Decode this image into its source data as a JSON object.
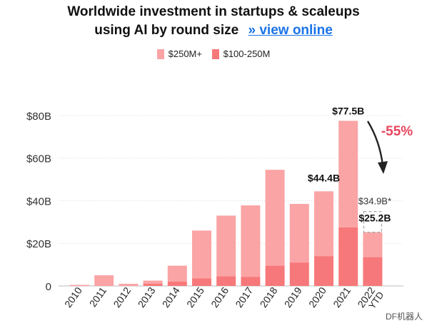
{
  "title_line1": "Worldwide investment in startups & scaleups",
  "title_line2": "using AI by round size",
  "view_online_link": "» view online",
  "footer_watermark": "DF机器人",
  "chart_data": {
    "type": "bar",
    "stacked": true,
    "categories": [
      "2010",
      "2011",
      "2012",
      "2013",
      "2014",
      "2015",
      "2016",
      "2017",
      "2018",
      "2019",
      "2020",
      "2021",
      "2022 YTD"
    ],
    "series": [
      {
        "name": "$100-250M",
        "color": "#f7787a",
        "values": [
          0,
          0,
          0,
          1,
          2,
          3.5,
          4.5,
          4.3,
          9.5,
          11,
          14,
          27.5,
          13.5
        ]
      },
      {
        "name": "$250M+",
        "color": "#fba4a5",
        "values": [
          0.5,
          5,
          1,
          1.5,
          7.5,
          22.5,
          28.5,
          33.5,
          45,
          27.5,
          30.4,
          50,
          11.7
        ]
      }
    ],
    "ylim": [
      0,
      85
    ],
    "yticks": [
      0,
      20,
      40,
      60,
      80
    ],
    "ytick_labels": [
      "0",
      "$20B",
      "$40B",
      "$60B",
      "$80B"
    ],
    "grid": true,
    "legend_position": "top",
    "annotations": [
      {
        "text": "$77.5B",
        "category": "2021",
        "bold": true
      },
      {
        "text": "$44.4B",
        "category": "2020",
        "bold": true
      },
      {
        "text": "$25.2B",
        "category": "2022 YTD",
        "bold": true
      },
      {
        "text": "$34.9B*",
        "category": "2022 YTD",
        "bold": false,
        "projected_value": 34.9
      },
      {
        "text": "-55%",
        "bold": true,
        "color": "#e8465e"
      }
    ]
  }
}
